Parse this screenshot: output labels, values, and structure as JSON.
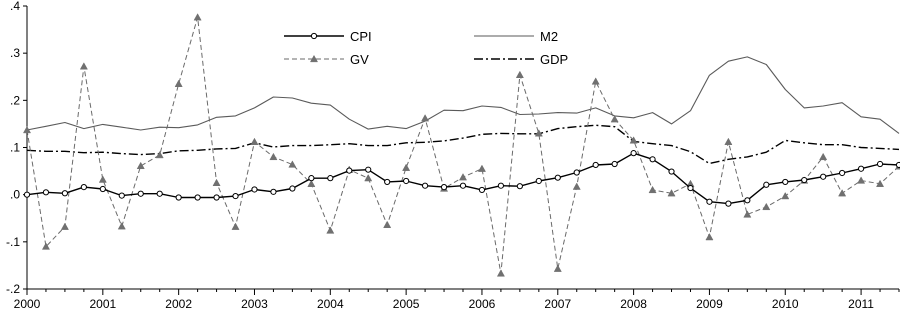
{
  "chart_data": {
    "type": "line",
    "title": "",
    "xlabel": "",
    "ylabel": "",
    "xlim": [
      2000,
      2011.5
    ],
    "ylim": [
      -0.2,
      0.4
    ],
    "grid": false,
    "legend_position": "top-center",
    "yticks": [
      {
        "value": 0.4,
        "label": ".4"
      },
      {
        "value": 0.3,
        "label": ".3"
      },
      {
        "value": 0.2,
        "label": ".2"
      },
      {
        "value": 0.1,
        "label": ".1"
      },
      {
        "value": 0.0,
        "label": ".0"
      },
      {
        "value": -0.1,
        "label": "-.1"
      },
      {
        "value": -0.2,
        "label": "-.2"
      }
    ],
    "xticks": [
      {
        "value": 2000,
        "label": "2000"
      },
      {
        "value": 2001,
        "label": "2001"
      },
      {
        "value": 2002,
        "label": "2002"
      },
      {
        "value": 2003,
        "label": "2003"
      },
      {
        "value": 2004,
        "label": "2004"
      },
      {
        "value": 2005,
        "label": "2005"
      },
      {
        "value": 2006,
        "label": "2006"
      },
      {
        "value": 2007,
        "label": "2007"
      },
      {
        "value": 2008,
        "label": "2008"
      },
      {
        "value": 2009,
        "label": "2009"
      },
      {
        "value": 2010,
        "label": "2010"
      },
      {
        "value": 2011,
        "label": "2011"
      }
    ],
    "x": [
      2000.0,
      2000.25,
      2000.5,
      2000.75,
      2001.0,
      2001.25,
      2001.5,
      2001.75,
      2002.0,
      2002.25,
      2002.5,
      2002.75,
      2003.0,
      2003.25,
      2003.5,
      2003.75,
      2004.0,
      2004.25,
      2004.5,
      2004.75,
      2005.0,
      2005.25,
      2005.5,
      2005.75,
      2006.0,
      2006.25,
      2006.5,
      2006.75,
      2007.0,
      2007.25,
      2007.5,
      2007.75,
      2008.0,
      2008.25,
      2008.5,
      2008.75,
      2009.0,
      2009.25,
      2009.5,
      2009.75,
      2010.0,
      2010.25,
      2010.5,
      2010.75,
      2011.0,
      2011.25,
      2011.5
    ],
    "series": [
      {
        "name": "CPI",
        "line_style": "solid",
        "marker": "circle",
        "values": [
          0.0,
          0.005,
          0.003,
          0.016,
          0.012,
          -0.002,
          0.002,
          0.002,
          -0.006,
          -0.006,
          -0.006,
          -0.003,
          0.011,
          0.006,
          0.013,
          0.035,
          0.035,
          0.051,
          0.053,
          0.027,
          0.029,
          0.019,
          0.016,
          0.019,
          0.01,
          0.019,
          0.018,
          0.029,
          0.036,
          0.047,
          0.063,
          0.065,
          0.088,
          0.075,
          0.049,
          0.014,
          -0.015,
          -0.019,
          -0.012,
          0.021,
          0.027,
          0.031,
          0.038,
          0.046,
          0.055,
          0.065,
          0.063
        ]
      },
      {
        "name": "M2",
        "line_style": "solid",
        "marker": "none",
        "values": [
          0.137,
          0.145,
          0.153,
          0.14,
          0.149,
          0.143,
          0.137,
          0.143,
          0.142,
          0.148,
          0.164,
          0.167,
          0.184,
          0.207,
          0.205,
          0.194,
          0.19,
          0.16,
          0.139,
          0.145,
          0.14,
          0.156,
          0.179,
          0.178,
          0.188,
          0.185,
          0.17,
          0.171,
          0.174,
          0.173,
          0.184,
          0.167,
          0.163,
          0.174,
          0.15,
          0.178,
          0.253,
          0.283,
          0.292,
          0.276,
          0.223,
          0.184,
          0.188,
          0.195,
          0.165,
          0.16,
          0.13
        ]
      },
      {
        "name": "GV",
        "line_style": "dashed",
        "marker": "triangle",
        "values": [
          0.137,
          -0.11,
          -0.068,
          0.272,
          0.032,
          -0.067,
          0.061,
          0.084,
          0.235,
          0.376,
          0.025,
          -0.068,
          0.112,
          0.08,
          0.064,
          0.023,
          -0.076,
          0.053,
          0.035,
          -0.064,
          0.057,
          0.162,
          0.013,
          0.037,
          0.055,
          -0.167,
          0.254,
          0.13,
          -0.157,
          0.017,
          0.24,
          0.16,
          0.115,
          0.01,
          0.003,
          0.023,
          -0.09,
          0.112,
          -0.042,
          -0.026,
          -0.003,
          0.03,
          0.08,
          0.003,
          0.03,
          0.023,
          0.06
        ]
      },
      {
        "name": "GDP",
        "line_style": "dashdot",
        "marker": "none",
        "values": [
          0.094,
          0.092,
          0.092,
          0.089,
          0.09,
          0.087,
          0.085,
          0.087,
          0.093,
          0.094,
          0.097,
          0.098,
          0.11,
          0.101,
          0.104,
          0.104,
          0.106,
          0.108,
          0.104,
          0.104,
          0.11,
          0.111,
          0.114,
          0.12,
          0.128,
          0.13,
          0.129,
          0.129,
          0.14,
          0.144,
          0.147,
          0.144,
          0.113,
          0.108,
          0.104,
          0.091,
          0.066,
          0.075,
          0.08,
          0.09,
          0.115,
          0.11,
          0.106,
          0.106,
          0.1,
          0.098,
          0.096
        ]
      }
    ]
  }
}
